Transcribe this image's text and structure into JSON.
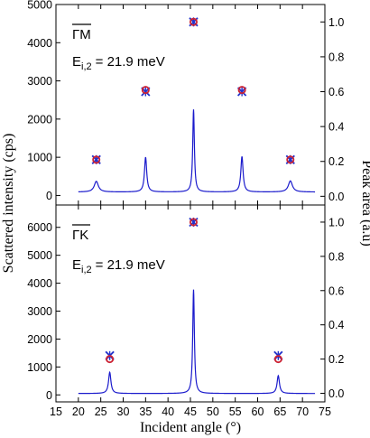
{
  "chart_data": [
    {
      "type": "line",
      "panel": "top",
      "annotation": {
        "direction": "ΓM",
        "energy": "E",
        "energy_sub": "i,2",
        "energy_value": "= 21.9 meV"
      },
      "xlabel": "Incident angle (°)",
      "ylabel": "Scattered intensity (cps)",
      "y2label": "Peak area (a.u)",
      "xlim": [
        15,
        75
      ],
      "ylim": [
        -250,
        5000
      ],
      "y2lim": [
        -0.05,
        1.1
      ],
      "x_ticks": [
        "15",
        "20",
        "25",
        "30",
        "35",
        "40",
        "45",
        "50",
        "55",
        "60",
        "65",
        "70",
        "75"
      ],
      "y_ticks": [
        "0",
        "1000",
        "2000",
        "3000",
        "4000",
        "5000"
      ],
      "y2_ticks": [
        "0.0",
        "0.2",
        "0.4",
        "0.6",
        "0.8",
        "1.0"
      ],
      "grid": false,
      "series": [
        {
          "kind": "line",
          "color": "#1a1acc",
          "baseline": 90,
          "peaks": [
            {
              "x": 24.0,
              "height": 280,
              "width": 0.55
            },
            {
              "x": 35.0,
              "height": 910,
              "width": 0.3
            },
            {
              "x": 45.7,
              "height": 2160,
              "width": 0.22
            },
            {
              "x": 56.5,
              "height": 930,
              "width": 0.3
            },
            {
              "x": 67.3,
              "height": 290,
              "width": 0.55
            }
          ]
        },
        {
          "kind": "markers-x",
          "color": "#2233cc",
          "x": [
            24.0,
            35.0,
            45.7,
            56.5,
            67.3
          ],
          "y": [
            0.21,
            0.6,
            1.0,
            0.6,
            0.21
          ]
        },
        {
          "kind": "markers-circle",
          "color": "#cc2233",
          "x": [
            24.0,
            35.0,
            45.7,
            56.5,
            67.3
          ],
          "y": [
            0.21,
            0.61,
            1.0,
            0.61,
            0.21
          ]
        }
      ]
    },
    {
      "type": "line",
      "panel": "bottom",
      "annotation": {
        "direction": "ΓK",
        "energy": "E",
        "energy_sub": "i,2",
        "energy_value": "= 21.9 meV"
      },
      "xlabel": "Incident angle (°)",
      "ylabel": "Scattered intensity (cps)",
      "y2label": "Peak area (a.u)",
      "xlim": [
        15,
        75
      ],
      "ylim": [
        -250,
        6800
      ],
      "y2lim": [
        -0.05,
        1.1
      ],
      "x_ticks": [
        "15",
        "20",
        "25",
        "30",
        "35",
        "40",
        "45",
        "50",
        "55",
        "60",
        "65",
        "70",
        "75"
      ],
      "y_ticks": [
        "0",
        "1000",
        "2000",
        "3000",
        "4000",
        "5000",
        "6000"
      ],
      "y2_ticks": [
        "0.0",
        "0.2",
        "0.4",
        "0.6",
        "0.8",
        "1.0"
      ],
      "grid": false,
      "series": [
        {
          "kind": "line",
          "color": "#1a1acc",
          "baseline": 50,
          "peaks": [
            {
              "x": 27.0,
              "height": 760,
              "width": 0.32
            },
            {
              "x": 45.7,
              "height": 3720,
              "width": 0.22
            },
            {
              "x": 64.6,
              "height": 640,
              "width": 0.32
            }
          ]
        },
        {
          "kind": "markers-x",
          "color": "#2233cc",
          "x": [
            27.0,
            45.7,
            64.6
          ],
          "y": [
            0.22,
            1.0,
            0.22
          ]
        },
        {
          "kind": "markers-circle",
          "color": "#cc2233",
          "x": [
            27.0,
            45.7,
            64.6
          ],
          "y": [
            0.2,
            1.0,
            0.2
          ]
        }
      ]
    }
  ]
}
